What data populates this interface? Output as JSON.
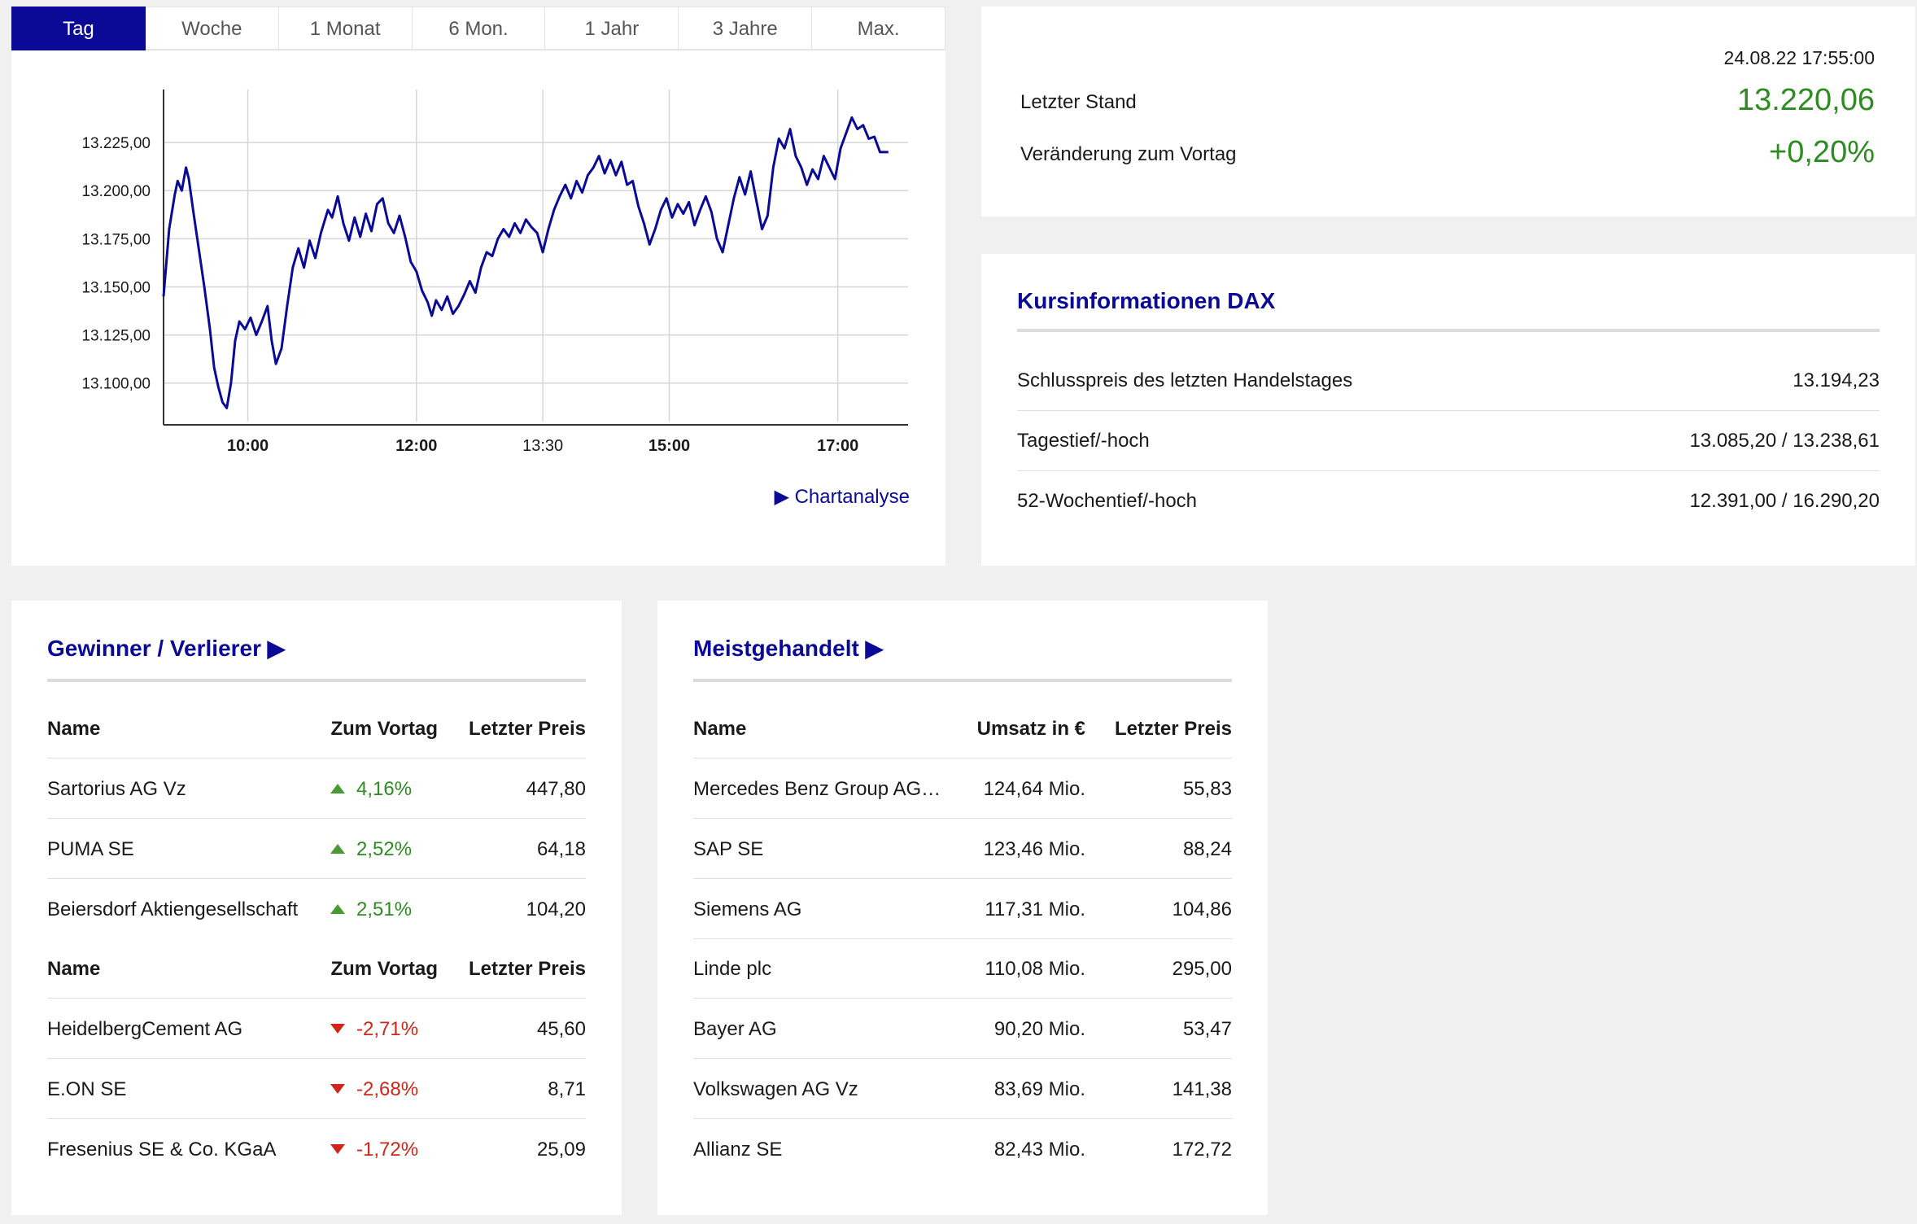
{
  "chart": {
    "tabs": [
      "Tag",
      "Woche",
      "1 Monat",
      "6 Mon.",
      "1 Jahr",
      "3 Jahre",
      "Max."
    ],
    "active_tab": 0,
    "chartanalyse_label": "▶ Chartanalyse",
    "line_color": "#0a0a96"
  },
  "chart_data": {
    "type": "line",
    "title": "",
    "xlabel": "",
    "ylabel": "",
    "ylim": [
      13080,
      13250
    ],
    "y_ticks": [
      13100,
      13125,
      13150,
      13175,
      13200,
      13225
    ],
    "y_tick_labels": [
      "13.100,00",
      "13.125,00",
      "13.150,00",
      "13.175,00",
      "13.200,00",
      "13.225,00"
    ],
    "x_ticks": [
      {
        "t": "10:00",
        "bold": true
      },
      {
        "t": "12:00",
        "bold": true
      },
      {
        "t": "13:30",
        "bold": false
      },
      {
        "t": "15:00",
        "bold": true
      },
      {
        "t": "17:00",
        "bold": true
      }
    ],
    "xlim": [
      "09:00",
      "17:50"
    ],
    "grid": true,
    "series": [
      {
        "points": [
          [
            "09:00",
            13145
          ],
          [
            "09:04",
            13180
          ],
          [
            "09:08",
            13198
          ],
          [
            "09:10",
            13205
          ],
          [
            "09:13",
            13200
          ],
          [
            "09:16",
            13212
          ],
          [
            "09:18",
            13206
          ],
          [
            "09:21",
            13190
          ],
          [
            "09:25",
            13170
          ],
          [
            "09:29",
            13150
          ],
          [
            "09:33",
            13128
          ],
          [
            "09:36",
            13108
          ],
          [
            "09:39",
            13098
          ],
          [
            "09:42",
            13090
          ],
          [
            "09:45",
            13087
          ],
          [
            "09:48",
            13100
          ],
          [
            "09:51",
            13122
          ],
          [
            "09:54",
            13132
          ],
          [
            "09:58",
            13128
          ],
          [
            "10:02",
            13134
          ],
          [
            "10:06",
            13125
          ],
          [
            "10:10",
            13132
          ],
          [
            "10:14",
            13140
          ],
          [
            "10:17",
            13122
          ],
          [
            "10:20",
            13110
          ],
          [
            "10:24",
            13118
          ],
          [
            "10:28",
            13140
          ],
          [
            "10:32",
            13160
          ],
          [
            "10:36",
            13170
          ],
          [
            "10:40",
            13160
          ],
          [
            "10:44",
            13174
          ],
          [
            "10:48",
            13165
          ],
          [
            "10:52",
            13178
          ],
          [
            "10:57",
            13190
          ],
          [
            "11:00",
            13186
          ],
          [
            "11:04",
            13197
          ],
          [
            "11:08",
            13183
          ],
          [
            "11:12",
            13174
          ],
          [
            "11:16",
            13186
          ],
          [
            "11:20",
            13176
          ],
          [
            "11:24",
            13188
          ],
          [
            "11:28",
            13179
          ],
          [
            "11:32",
            13193
          ],
          [
            "11:36",
            13196
          ],
          [
            "11:40",
            13183
          ],
          [
            "11:44",
            13178
          ],
          [
            "11:48",
            13187
          ],
          [
            "11:52",
            13176
          ],
          [
            "11:56",
            13163
          ],
          [
            "12:00",
            13158
          ],
          [
            "12:04",
            13148
          ],
          [
            "12:08",
            13142
          ],
          [
            "12:11",
            13135
          ],
          [
            "12:14",
            13143
          ],
          [
            "12:18",
            13138
          ],
          [
            "12:22",
            13145
          ],
          [
            "12:26",
            13136
          ],
          [
            "12:30",
            13140
          ],
          [
            "12:34",
            13146
          ],
          [
            "12:38",
            13153
          ],
          [
            "12:42",
            13147
          ],
          [
            "12:46",
            13160
          ],
          [
            "12:50",
            13168
          ],
          [
            "12:54",
            13166
          ],
          [
            "12:58",
            13175
          ],
          [
            "13:02",
            13180
          ],
          [
            "13:06",
            13176
          ],
          [
            "13:10",
            13183
          ],
          [
            "13:14",
            13178
          ],
          [
            "13:18",
            13185
          ],
          [
            "13:22",
            13181
          ],
          [
            "13:26",
            13178
          ],
          [
            "13:30",
            13168
          ],
          [
            "13:34",
            13180
          ],
          [
            "13:38",
            13190
          ],
          [
            "13:42",
            13197
          ],
          [
            "13:46",
            13203
          ],
          [
            "13:50",
            13196
          ],
          [
            "13:54",
            13205
          ],
          [
            "13:58",
            13199
          ],
          [
            "14:02",
            13208
          ],
          [
            "14:06",
            13212
          ],
          [
            "14:10",
            13218
          ],
          [
            "14:14",
            13209
          ],
          [
            "14:18",
            13216
          ],
          [
            "14:22",
            13208
          ],
          [
            "14:26",
            13215
          ],
          [
            "14:30",
            13203
          ],
          [
            "14:34",
            13205
          ],
          [
            "14:38",
            13192
          ],
          [
            "14:42",
            13183
          ],
          [
            "14:46",
            13172
          ],
          [
            "14:50",
            13180
          ],
          [
            "14:54",
            13190
          ],
          [
            "14:58",
            13196
          ],
          [
            "15:02",
            13186
          ],
          [
            "15:06",
            13193
          ],
          [
            "15:10",
            13188
          ],
          [
            "15:14",
            13194
          ],
          [
            "15:18",
            13182
          ],
          [
            "15:22",
            13190
          ],
          [
            "15:26",
            13197
          ],
          [
            "15:30",
            13189
          ],
          [
            "15:34",
            13175
          ],
          [
            "15:38",
            13168
          ],
          [
            "15:42",
            13182
          ],
          [
            "15:46",
            13196
          ],
          [
            "15:50",
            13207
          ],
          [
            "15:54",
            13198
          ],
          [
            "15:58",
            13210
          ],
          [
            "16:02",
            13195
          ],
          [
            "16:06",
            13180
          ],
          [
            "16:10",
            13187
          ],
          [
            "16:14",
            13212
          ],
          [
            "16:18",
            13227
          ],
          [
            "16:22",
            13222
          ],
          [
            "16:26",
            13232
          ],
          [
            "16:30",
            13218
          ],
          [
            "16:34",
            13212
          ],
          [
            "16:38",
            13203
          ],
          [
            "16:42",
            13211
          ],
          [
            "16:46",
            13206
          ],
          [
            "16:50",
            13218
          ],
          [
            "16:54",
            13212
          ],
          [
            "16:58",
            13206
          ],
          [
            "17:02",
            13222
          ],
          [
            "17:06",
            13230
          ],
          [
            "17:10",
            13238
          ],
          [
            "17:14",
            13232
          ],
          [
            "17:18",
            13234
          ],
          [
            "17:22",
            13227
          ],
          [
            "17:26",
            13228
          ],
          [
            "17:30",
            13220
          ],
          [
            "17:36",
            13220
          ]
        ]
      }
    ]
  },
  "quote": {
    "timestamp": "24.08.22 17:55:00",
    "last_label": "Letzter Stand",
    "last_value": "13.220,06",
    "change_label": "Veränderung zum Vortag",
    "change_value": "+0,20%",
    "positive_color": "#2e8b22"
  },
  "info": {
    "title": "Kursinformationen DAX",
    "rows": [
      {
        "label": "Schlusspreis des letzten Handelstages",
        "value": "13.194,23"
      },
      {
        "label": "Tagestief/-hoch",
        "value": "13.085,20 / 13.238,61"
      },
      {
        "label": "52-Wochentief/-hoch",
        "value": "12.391,00 / 16.290,20"
      }
    ]
  },
  "gainers": {
    "title": "Gewinner / Verlierer ▶",
    "header": {
      "name": "Name",
      "change": "Zum Vortag",
      "price": "Letzter Preis"
    },
    "winners": [
      {
        "name": "Sartorius AG Vz",
        "change": "4,16%",
        "price": "447,80"
      },
      {
        "name": "PUMA SE",
        "change": "2,52%",
        "price": "64,18"
      },
      {
        "name": "Beiersdorf Aktiengesellschaft",
        "change": "2,51%",
        "price": "104,20"
      }
    ],
    "losers": [
      {
        "name": "HeidelbergCement AG",
        "change": "-2,71%",
        "price": "45,60"
      },
      {
        "name": "E.ON SE",
        "change": "-2,68%",
        "price": "8,71"
      },
      {
        "name": "Fresenius SE & Co. KGaA",
        "change": "-1,72%",
        "price": "25,09"
      }
    ]
  },
  "most_traded": {
    "title": "Meistgehandelt ▶",
    "header": {
      "name": "Name",
      "volume": "Umsatz in €",
      "price": "Letzter Preis"
    },
    "rows": [
      {
        "name": "Mercedes Benz Group AG…",
        "volume": "124,64 Mio.",
        "price": "55,83"
      },
      {
        "name": "SAP SE",
        "volume": "123,46 Mio.",
        "price": "88,24"
      },
      {
        "name": "Siemens AG",
        "volume": "117,31 Mio.",
        "price": "104,86"
      },
      {
        "name": "Linde plc",
        "volume": "110,08 Mio.",
        "price": "295,00"
      },
      {
        "name": "Bayer AG",
        "volume": "90,20 Mio.",
        "price": "53,47"
      },
      {
        "name": "Volkswagen AG Vz",
        "volume": "83,69 Mio.",
        "price": "141,38"
      },
      {
        "name": "Allianz SE",
        "volume": "82,43 Mio.",
        "price": "172,72"
      }
    ]
  }
}
